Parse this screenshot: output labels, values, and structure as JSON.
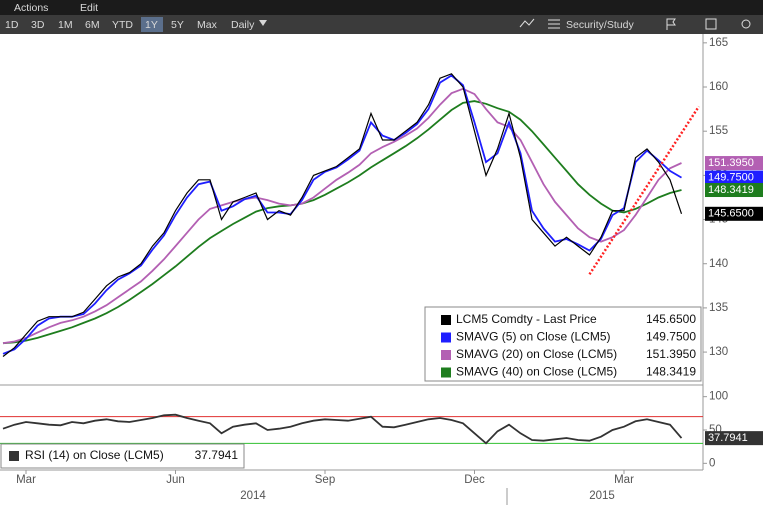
{
  "toolbar": {
    "menu": [
      "Actions",
      "Edit"
    ],
    "ranges": [
      "1D",
      "3D",
      "1M",
      "6M",
      "YTD",
      "1Y",
      "5Y",
      "Max"
    ],
    "active_range_index": 5,
    "frequency": "Daily",
    "study_button": "Security/Study"
  },
  "chart_data": [
    {
      "type": "line",
      "panel": "price",
      "categories": [
        null,
        null,
        "Mar",
        null,
        null,
        null,
        null,
        null,
        null,
        null,
        null,
        null,
        null,
        null,
        null,
        "Jun",
        null,
        null,
        null,
        null,
        null,
        null,
        null,
        null,
        null,
        null,
        null,
        null,
        "Sep",
        null,
        null,
        null,
        null,
        null,
        null,
        null,
        null,
        null,
        null,
        null,
        null,
        "Dec",
        null,
        null,
        null,
        null,
        null,
        null,
        null,
        null,
        null,
        null,
        null,
        null,
        "Mar",
        null,
        null,
        null,
        null,
        null
      ],
      "x_groups": [
        "2014",
        "2015"
      ],
      "ylim": [
        126.5,
        166
      ],
      "yticks": [
        130,
        135,
        140,
        145,
        150,
        155,
        160,
        165
      ],
      "series": [
        {
          "name": "LCM5 Comdty - Last Price",
          "color": "#000000",
          "last_label": "145.6500",
          "values": [
            129.5,
            130.5,
            132,
            133.5,
            134,
            134,
            134,
            134.5,
            136,
            137.5,
            138.5,
            139,
            140,
            142,
            143.5,
            146,
            148,
            149.5,
            149.5,
            145,
            147,
            147.5,
            148,
            145,
            146,
            145.5,
            147.5,
            150,
            150.5,
            151,
            152,
            153,
            157,
            154,
            154,
            155,
            156,
            158,
            161,
            161.5,
            160,
            155,
            150,
            153,
            157,
            152,
            145,
            143.5,
            142,
            143,
            142,
            141,
            143,
            146,
            146,
            152,
            153,
            151.5,
            149.5,
            145.65
          ]
        },
        {
          "name": "SMAVG (5) on Close (LCM5)",
          "color": "#1f1fff",
          "last_label": "149.7500",
          "values": [
            129.8,
            130.3,
            131.5,
            133,
            133.8,
            134,
            134,
            134.3,
            135.5,
            137,
            138.2,
            138.9,
            139.8,
            141.6,
            143.2,
            145.5,
            147.5,
            149,
            149.3,
            146,
            146.5,
            147.3,
            147.7,
            145.8,
            145.8,
            145.6,
            147.2,
            149.5,
            150.4,
            150.9,
            151.8,
            152.8,
            156,
            154.5,
            154,
            154.8,
            155.8,
            157.5,
            160.5,
            161.3,
            160.2,
            156,
            151.5,
            152.5,
            156,
            152.5,
            146,
            144,
            142.5,
            142.8,
            142.2,
            141.5,
            142.8,
            145.5,
            146.3,
            151.5,
            152.8,
            151.7,
            150.5,
            149.75
          ]
        },
        {
          "name": "SMAVG (20) on Close (LCM5)",
          "color": "#b360b3",
          "last_label": "151.3950",
          "values": [
            131,
            131.2,
            131.6,
            132.2,
            132.8,
            133.3,
            133.6,
            134,
            134.6,
            135.3,
            136.2,
            137.1,
            138,
            139.2,
            140.5,
            142,
            143.5,
            145,
            146.2,
            146.6,
            147,
            147.3,
            147.5,
            147.2,
            146.8,
            146.6,
            146.8,
            147.5,
            148.5,
            149.5,
            150.3,
            151.2,
            152.5,
            153.2,
            153.8,
            154.5,
            155.3,
            156.5,
            158,
            159.3,
            159.8,
            159.2,
            157.5,
            156,
            155.5,
            154,
            151.5,
            149,
            147,
            145.5,
            144,
            143,
            142.5,
            143,
            143.8,
            145.5,
            147.5,
            149.5,
            150.8,
            151.395
          ]
        },
        {
          "name": "SMAVG (40) on Close (LCM5)",
          "color": "#1e7d1e",
          "last_label": "148.3419",
          "values": [
            131,
            131.1,
            131.3,
            131.6,
            132,
            132.4,
            132.8,
            133.3,
            133.8,
            134.4,
            135.1,
            135.9,
            136.8,
            137.7,
            138.7,
            139.7,
            140.8,
            141.9,
            142.9,
            143.7,
            144.5,
            145.2,
            145.9,
            146.3,
            146.5,
            146.6,
            146.8,
            147.2,
            147.8,
            148.5,
            149.2,
            150,
            150.9,
            151.7,
            152.5,
            153.3,
            154.2,
            155.2,
            156.3,
            157.4,
            158.2,
            158.4,
            158.1,
            157.6,
            157.2,
            156.3,
            155,
            153.5,
            152,
            150.5,
            149,
            147.8,
            146.8,
            146,
            145.8,
            146.2,
            146.8,
            147.5,
            148,
            148.3419
          ]
        }
      ],
      "trendline": {
        "color": "#ff2222",
        "x": [
          51,
          60.5
        ],
        "values": [
          138.8,
          157.8
        ]
      }
    },
    {
      "type": "line",
      "panel": "rsi",
      "ylim": [
        -10,
        113
      ],
      "yticks": [
        0,
        50,
        100
      ],
      "levels": [
        {
          "value": 70,
          "color": "#e03030"
        },
        {
          "value": 30,
          "color": "#30c030"
        }
      ],
      "series": [
        {
          "name": "RSI (14) on Close (LCM5)",
          "color": "#333333",
          "last_label": "37.7941",
          "values": [
            52,
            58,
            62,
            60,
            58,
            57,
            62,
            60,
            64,
            66,
            63,
            62,
            65,
            68,
            72,
            73,
            68,
            64,
            60,
            45,
            55,
            58,
            60,
            50,
            52,
            55,
            60,
            64,
            66,
            65,
            64,
            67,
            70,
            55,
            54,
            58,
            62,
            66,
            68,
            65,
            60,
            45,
            30,
            48,
            58,
            45,
            35,
            34,
            36,
            38,
            35,
            34,
            40,
            50,
            55,
            63,
            66,
            62,
            58,
            37.7941
          ]
        }
      ]
    }
  ]
}
